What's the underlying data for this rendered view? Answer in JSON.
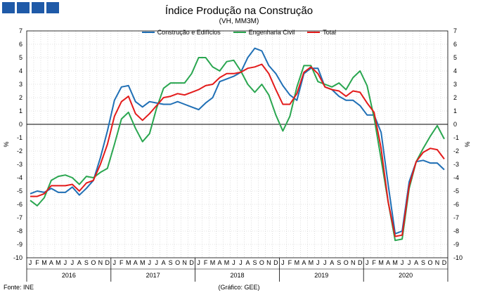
{
  "header": {
    "title": "Índice Produção na Construção",
    "subtitle": "(VH, MM3M)"
  },
  "footer": {
    "source": "Fonte: INE",
    "credit": "(Gráfico: GEE)"
  },
  "colors": {
    "logo": "#1f5aa8",
    "grid": "#c8c8c8",
    "axis": "#000000"
  },
  "chart_data": {
    "type": "line",
    "title": "Índice Produção na Construção",
    "subtitle": "(VH, MM3M)",
    "ylabel_left": "%",
    "ylabel_right": "%",
    "ylim": [
      -10,
      7
    ],
    "yticks": [
      7,
      6,
      5,
      4,
      3,
      2,
      1,
      0,
      -1,
      -2,
      -3,
      -4,
      -5,
      -6,
      -7,
      -8,
      -9,
      -10
    ],
    "grid": true,
    "legend_position": "top-center",
    "month_labels": [
      "J",
      "F",
      "M",
      "A",
      "M",
      "J",
      "J",
      "A",
      "S",
      "O",
      "N",
      "D"
    ],
    "years": [
      "2016",
      "2017",
      "2018",
      "2019",
      "2020"
    ],
    "series": [
      {
        "name": "Construção e Edifícios",
        "color": "#1f6fb5",
        "values": [
          -5.2,
          -5.0,
          -5.1,
          -4.8,
          -5.1,
          -5.1,
          -4.7,
          -5.3,
          -4.8,
          -4.2,
          -2.5,
          -0.5,
          1.8,
          2.8,
          2.9,
          1.7,
          1.3,
          1.7,
          1.6,
          1.5,
          1.5,
          1.7,
          1.5,
          1.3,
          1.1,
          1.6,
          2.0,
          3.2,
          3.4,
          3.6,
          3.9,
          5.0,
          5.7,
          5.5,
          4.4,
          3.8,
          2.9,
          2.2,
          1.8,
          3.8,
          4.2,
          4.2,
          2.8,
          2.6,
          2.1,
          1.8,
          1.8,
          1.4,
          0.7,
          0.7,
          -0.6,
          -4.5,
          -8.2,
          -8.0,
          -4.3,
          -2.8,
          -2.7,
          -2.9,
          -2.9,
          -3.4
        ]
      },
      {
        "name": "Engenharia Civil",
        "color": "#2aa650",
        "values": [
          -5.7,
          -6.1,
          -5.5,
          -4.2,
          -3.9,
          -3.8,
          -4.0,
          -4.5,
          -3.9,
          -4.0,
          -3.6,
          -3.3,
          -1.5,
          0.4,
          0.9,
          -0.3,
          -1.3,
          -0.7,
          1.2,
          2.7,
          3.1,
          3.1,
          3.1,
          3.8,
          5.0,
          5.0,
          4.3,
          4.0,
          4.7,
          4.8,
          4.0,
          3.0,
          2.4,
          3.0,
          2.2,
          0.7,
          -0.5,
          0.6,
          2.8,
          4.4,
          4.4,
          3.2,
          3.0,
          2.8,
          3.1,
          2.6,
          3.5,
          4.0,
          2.9,
          0.5,
          -2.6,
          -5.8,
          -8.7,
          -8.6,
          -4.8,
          -2.8,
          -1.8,
          -0.9,
          -0.1,
          -1.1
        ]
      },
      {
        "name": "Total",
        "color": "#e31b1b",
        "values": [
          -5.4,
          -5.4,
          -5.2,
          -4.6,
          -4.6,
          -4.6,
          -4.5,
          -5.0,
          -4.4,
          -4.2,
          -3.0,
          -1.5,
          0.6,
          1.7,
          2.1,
          0.8,
          0.3,
          0.8,
          1.4,
          2.0,
          2.1,
          2.3,
          2.2,
          2.4,
          2.6,
          2.9,
          3.0,
          3.5,
          3.8,
          3.8,
          3.9,
          4.2,
          4.3,
          4.5,
          3.8,
          2.6,
          1.5,
          1.5,
          2.3,
          3.9,
          4.3,
          3.8,
          2.8,
          2.6,
          2.5,
          2.1,
          2.5,
          2.4,
          1.6,
          0.9,
          -1.8,
          -5.8,
          -8.4,
          -8.3,
          -4.6,
          -2.8,
          -2.1,
          -1.8,
          -1.9,
          -2.6
        ]
      }
    ]
  }
}
